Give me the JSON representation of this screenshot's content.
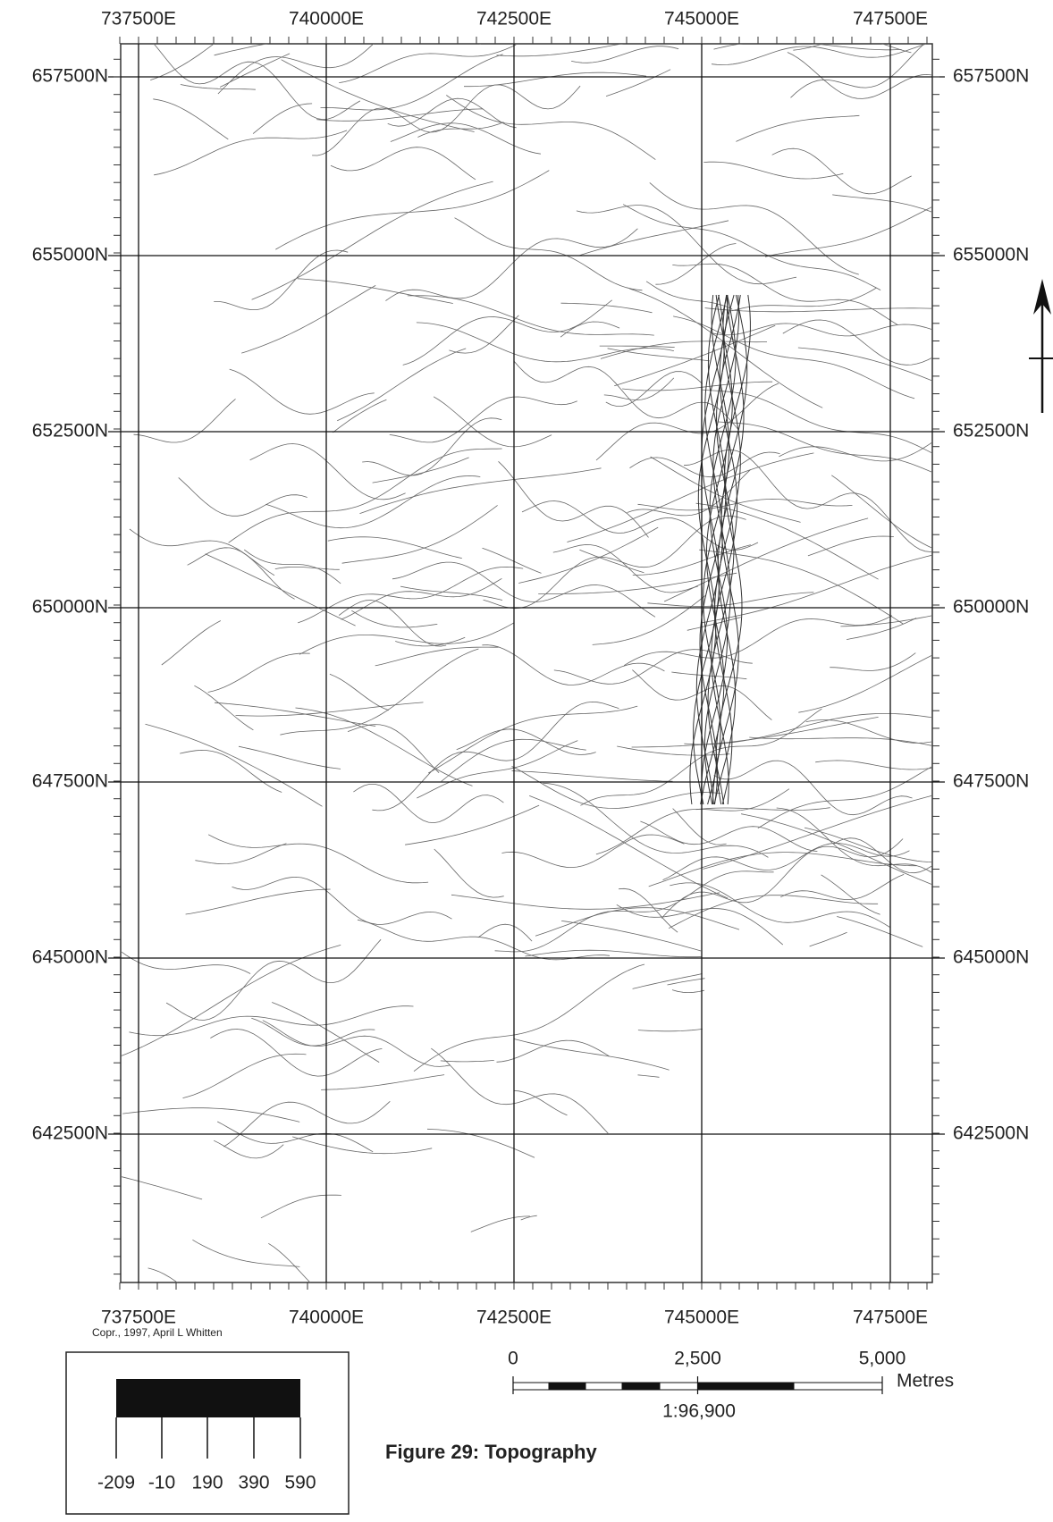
{
  "map": {
    "eastings_top": [
      "737500E",
      "740000E",
      "742500E",
      "745000E",
      "747500E"
    ],
    "eastings_bottom": [
      "737500E",
      "740000E",
      "742500E",
      "745000E",
      "747500E"
    ],
    "northings_left": [
      "657500N",
      "655000N",
      "652500N",
      "650000N",
      "647500N",
      "645000N",
      "642500N"
    ],
    "northings_right": [
      "657500N",
      "655000N",
      "652500N",
      "650000N",
      "647500N",
      "645000N",
      "642500N"
    ],
    "copyright": "Copr., 1997, April L Whitten",
    "legend": {
      "ticks": [
        -209,
        -10,
        190,
        390,
        590
      ]
    },
    "scale_bar": {
      "labels": [
        "0",
        "2,500",
        "5,000"
      ],
      "unit": "Metres",
      "ratio": "1:96,900"
    },
    "caption": "Figure 29:  Topography"
  }
}
